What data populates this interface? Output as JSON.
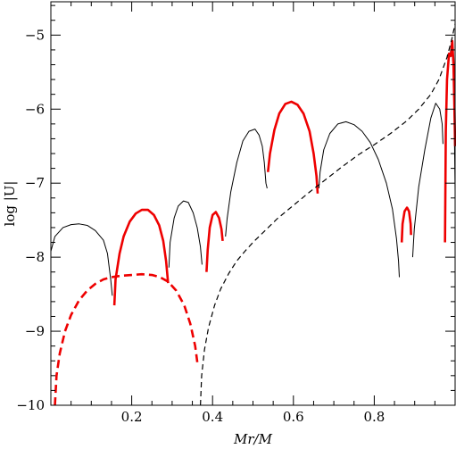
{
  "chart_data": {
    "type": "line",
    "xlabel": "Mr/M",
    "ylabel": "log |U|",
    "xlim": [
      0.0,
      1.0
    ],
    "ylim": [
      -10,
      -4.55
    ],
    "xticks_major": [
      0.2,
      0.4,
      0.6,
      0.8
    ],
    "xtick_labels": [
      "0.2",
      "0.4",
      "0.6",
      "0.8"
    ],
    "yticks_major": [
      -10,
      -9,
      -8,
      -7,
      -6,
      -5
    ],
    "ytick_labels": [
      "−10",
      "−9",
      "−8",
      "−7",
      "−6",
      "−5"
    ],
    "grid": false,
    "legend": "none",
    "series": [
      {
        "style": "solid",
        "color": "#000000",
        "width": 1,
        "segments": [
          [
            [
              0.0,
              -7.92
            ],
            [
              0.01,
              -7.72
            ],
            [
              0.03,
              -7.6
            ],
            [
              0.05,
              -7.56
            ],
            [
              0.07,
              -7.55
            ],
            [
              0.09,
              -7.57
            ],
            [
              0.11,
              -7.64
            ],
            [
              0.13,
              -7.77
            ],
            [
              0.14,
              -7.95
            ],
            [
              0.148,
              -8.3
            ],
            [
              0.152,
              -8.52
            ]
          ],
          [
            [
              0.292,
              -8.14
            ],
            [
              0.295,
              -7.8
            ],
            [
              0.305,
              -7.47
            ],
            [
              0.315,
              -7.31
            ],
            [
              0.328,
              -7.24
            ],
            [
              0.34,
              -7.26
            ],
            [
              0.352,
              -7.4
            ],
            [
              0.362,
              -7.6
            ],
            [
              0.37,
              -7.86
            ],
            [
              0.374,
              -8.1
            ]
          ],
          [
            [
              0.432,
              -7.72
            ],
            [
              0.436,
              -7.48
            ],
            [
              0.445,
              -7.12
            ],
            [
              0.46,
              -6.72
            ],
            [
              0.475,
              -6.43
            ],
            [
              0.49,
              -6.3
            ],
            [
              0.505,
              -6.27
            ],
            [
              0.515,
              -6.35
            ],
            [
              0.523,
              -6.5
            ],
            [
              0.528,
              -6.72
            ],
            [
              0.532,
              -7.0
            ],
            [
              0.535,
              -7.07
            ]
          ],
          [
            [
              0.663,
              -7.07
            ],
            [
              0.666,
              -6.85
            ],
            [
              0.675,
              -6.55
            ],
            [
              0.69,
              -6.33
            ],
            [
              0.71,
              -6.2
            ],
            [
              0.73,
              -6.17
            ],
            [
              0.75,
              -6.21
            ],
            [
              0.77,
              -6.3
            ],
            [
              0.79,
              -6.45
            ],
            [
              0.81,
              -6.68
            ],
            [
              0.83,
              -7.0
            ],
            [
              0.845,
              -7.35
            ],
            [
              0.855,
              -7.75
            ],
            [
              0.86,
              -8.05
            ],
            [
              0.862,
              -8.27
            ]
          ],
          [
            [
              0.895,
              -8.0
            ],
            [
              0.899,
              -7.62
            ],
            [
              0.91,
              -7.05
            ],
            [
              0.925,
              -6.55
            ],
            [
              0.94,
              -6.12
            ],
            [
              0.952,
              -5.92
            ],
            [
              0.962,
              -6.0
            ],
            [
              0.968,
              -6.2
            ],
            [
              0.97,
              -6.47
            ]
          ],
          [
            [
              0.987,
              -5.3
            ],
            [
              0.991,
              -5.1
            ],
            [
              0.995,
              -5.4
            ],
            [
              0.998,
              -6.2
            ],
            [
              1.0,
              -7.1
            ]
          ]
        ]
      },
      {
        "style": "solid",
        "color": "#ee0000",
        "width": 2.6,
        "segments": [
          [
            [
              0.157,
              -8.65
            ],
            [
              0.16,
              -8.3
            ],
            [
              0.17,
              -7.95
            ],
            [
              0.18,
              -7.72
            ],
            [
              0.195,
              -7.52
            ],
            [
              0.21,
              -7.41
            ],
            [
              0.225,
              -7.36
            ],
            [
              0.24,
              -7.36
            ],
            [
              0.255,
              -7.43
            ],
            [
              0.268,
              -7.57
            ],
            [
              0.278,
              -7.78
            ],
            [
              0.285,
              -8.05
            ],
            [
              0.29,
              -8.35
            ]
          ],
          [
            [
              0.385,
              -8.2
            ],
            [
              0.388,
              -7.9
            ],
            [
              0.393,
              -7.6
            ],
            [
              0.4,
              -7.43
            ],
            [
              0.408,
              -7.39
            ],
            [
              0.416,
              -7.47
            ],
            [
              0.422,
              -7.62
            ],
            [
              0.425,
              -7.78
            ]
          ],
          [
            [
              0.537,
              -6.85
            ],
            [
              0.542,
              -6.6
            ],
            [
              0.553,
              -6.28
            ],
            [
              0.565,
              -6.06
            ],
            [
              0.58,
              -5.93
            ],
            [
              0.595,
              -5.9
            ],
            [
              0.61,
              -5.94
            ],
            [
              0.625,
              -6.06
            ],
            [
              0.64,
              -6.3
            ],
            [
              0.65,
              -6.6
            ],
            [
              0.657,
              -6.9
            ],
            [
              0.66,
              -7.14
            ]
          ],
          [
            [
              0.868,
              -7.8
            ],
            [
              0.87,
              -7.55
            ],
            [
              0.875,
              -7.38
            ],
            [
              0.881,
              -7.33
            ],
            [
              0.886,
              -7.38
            ],
            [
              0.89,
              -7.55
            ],
            [
              0.891,
              -7.7
            ]
          ],
          [
            [
              0.975,
              -7.8
            ],
            [
              0.977,
              -6.3
            ],
            [
              0.98,
              -5.6
            ],
            [
              0.985,
              -5.25
            ],
            [
              0.99,
              -5.28
            ],
            [
              0.993,
              -5.08
            ],
            [
              0.996,
              -5.4
            ],
            [
              0.998,
              -5.9
            ],
            [
              1.0,
              -6.5
            ]
          ]
        ]
      },
      {
        "style": "dashed",
        "color": "#000000",
        "width": 1.2,
        "segments": [
          [
            [
              0.37,
              -10.0
            ],
            [
              0.373,
              -9.6
            ],
            [
              0.38,
              -9.25
            ],
            [
              0.39,
              -8.95
            ],
            [
              0.405,
              -8.65
            ],
            [
              0.42,
              -8.43
            ],
            [
              0.44,
              -8.22
            ],
            [
              0.46,
              -8.05
            ],
            [
              0.48,
              -7.92
            ],
            [
              0.5,
              -7.8
            ],
            [
              0.53,
              -7.64
            ],
            [
              0.56,
              -7.48
            ],
            [
              0.6,
              -7.3
            ],
            [
              0.64,
              -7.12
            ],
            [
              0.68,
              -6.95
            ],
            [
              0.72,
              -6.78
            ],
            [
              0.76,
              -6.62
            ],
            [
              0.8,
              -6.48
            ],
            [
              0.84,
              -6.33
            ],
            [
              0.88,
              -6.16
            ],
            [
              0.91,
              -6.0
            ],
            [
              0.94,
              -5.8
            ],
            [
              0.96,
              -5.6
            ],
            [
              0.98,
              -5.3
            ],
            [
              0.992,
              -5.05
            ],
            [
              1.0,
              -4.85
            ]
          ]
        ]
      },
      {
        "style": "dashed",
        "color": "#ee0000",
        "width": 2.6,
        "segments": [
          [
            [
              0.01,
              -10.0
            ],
            [
              0.014,
              -9.6
            ],
            [
              0.022,
              -9.3
            ],
            [
              0.035,
              -9.0
            ],
            [
              0.05,
              -8.78
            ],
            [
              0.07,
              -8.58
            ],
            [
              0.09,
              -8.45
            ],
            [
              0.11,
              -8.36
            ],
            [
              0.13,
              -8.3
            ],
            [
              0.15,
              -8.27
            ],
            [
              0.175,
              -8.25
            ],
            [
              0.2,
              -8.24
            ],
            [
              0.225,
              -8.23
            ],
            [
              0.25,
              -8.24
            ],
            [
              0.27,
              -8.27
            ],
            [
              0.29,
              -8.33
            ],
            [
              0.31,
              -8.45
            ],
            [
              0.33,
              -8.65
            ],
            [
              0.345,
              -8.9
            ],
            [
              0.357,
              -9.2
            ],
            [
              0.363,
              -9.45
            ]
          ]
        ]
      }
    ]
  }
}
